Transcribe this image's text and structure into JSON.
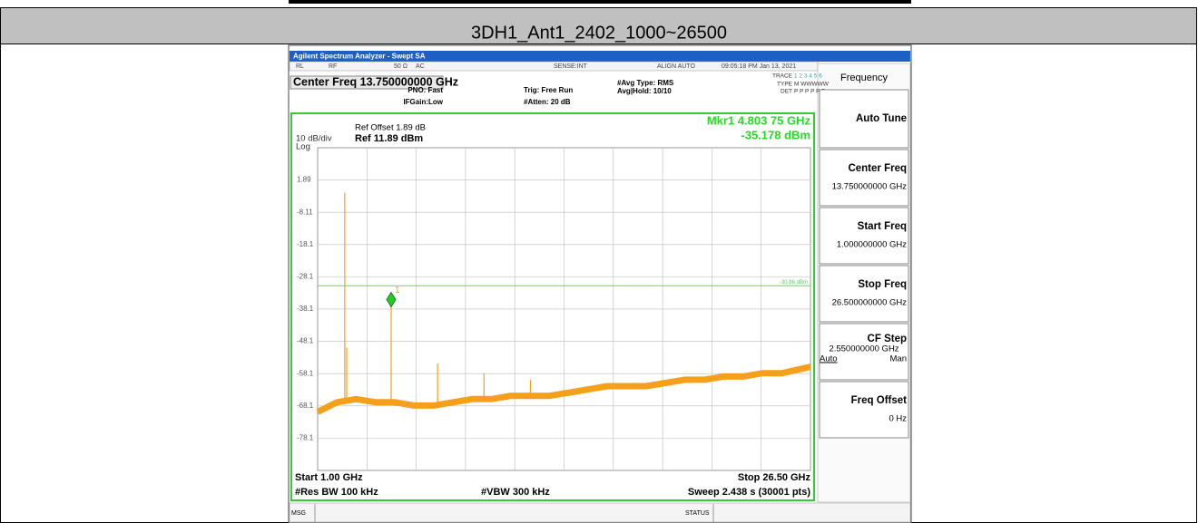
{
  "header": {
    "title": "3DH1_Ant1_2402_1000~26500"
  },
  "analyzer": {
    "title_bar": "Agilent Spectrum Analyzer - Swept SA",
    "status_row": [
      "RL",
      "RF",
      "50 Ω",
      "AC",
      "SENSE:INT",
      "ALIGN AUTO",
      "09:05:18 PM Jan 13, 2021"
    ],
    "center_freq": "Center Freq 13.750000000 GHz",
    "settings": [
      "PNO: Fast",
      "IFGain:Low",
      "Trig: Free Run",
      "#Atten: 20 dB",
      "#Avg Type: RMS",
      "Avg|Hold: 10/10"
    ],
    "trace_info": [
      "TRACE",
      "1 2 3 4 5 6",
      "TYPE",
      "M WWWWW",
      "DET",
      "P P P P P P"
    ],
    "ref_offset": "Ref Offset 1.89 dB",
    "scale": "10 dB/div",
    "ref_level": "Ref 11.89 dBm",
    "log": "Log",
    "marker_readout": [
      "Mkr1 4.803 75 GHz",
      "-35.178 dBm"
    ],
    "footer": {
      "start": "Start 1.00 GHz",
      "stop": "Stop 26.50 GHz",
      "rbw": "#Res BW 100 kHz",
      "vbw": "#VBW 300 kHz",
      "sweep": "Sweep  2.438 s (30001 pts)"
    },
    "status_bar": [
      "MSG",
      "STATUS"
    ],
    "menu_title": "Frequency",
    "softkeys": [
      {
        "label": "Auto Tune"
      },
      {
        "label": "Center Freq",
        "value": "13.750000000 GHz"
      },
      {
        "label": "Start Freq",
        "value": "1.000000000 GHz"
      },
      {
        "label": "Stop Freq",
        "value": "26.500000000 GHz"
      },
      {
        "label": "CF Step",
        "value": "2.550000000 GHz",
        "options": [
          "Auto",
          "Man"
        ]
      },
      {
        "label": "Freq Offset",
        "value": "0 Hz"
      }
    ]
  },
  "chart_data": {
    "type": "line",
    "xlim": [
      1,
      26.5
    ],
    "ylim": [
      -88.11,
      11.89
    ],
    "yticks": [
      1.89,
      -8.11,
      -18.1,
      -28.1,
      -38.1,
      -48.1,
      -58.1,
      -68.1,
      -78.1
    ],
    "grid": true,
    "series": [
      {
        "color": "#f5a01a",
        "x": [
          1,
          2,
          3,
          4,
          5,
          6,
          7,
          8,
          9,
          10,
          11,
          12,
          13,
          14,
          15,
          16,
          17,
          18,
          19,
          20,
          21,
          22,
          23,
          24,
          25,
          26.5
        ],
        "values": [
          -70,
          -67,
          -66,
          -67,
          -67,
          -68,
          -68,
          -67,
          -66,
          -66,
          -65,
          -65,
          -65,
          -64,
          -63,
          -62,
          -62,
          -62,
          -61,
          -60,
          -60,
          -59,
          -59,
          -58,
          -58,
          -56
        ]
      }
    ],
    "spurs": {
      "color": "#f5a01a",
      "x": [
        2.402,
        2.5,
        4.804,
        7.206,
        9.608,
        12.01
      ],
      "values": [
        -2,
        -50,
        -35.2,
        -55,
        -58,
        -60
      ]
    },
    "marker": {
      "label": "1",
      "x": 4.80375,
      "value": -35.178,
      "color": "#22cc22"
    },
    "display_line": {
      "value": -30.86,
      "value_label": "-30.86 dBm",
      "color": "#55cc55"
    }
  }
}
